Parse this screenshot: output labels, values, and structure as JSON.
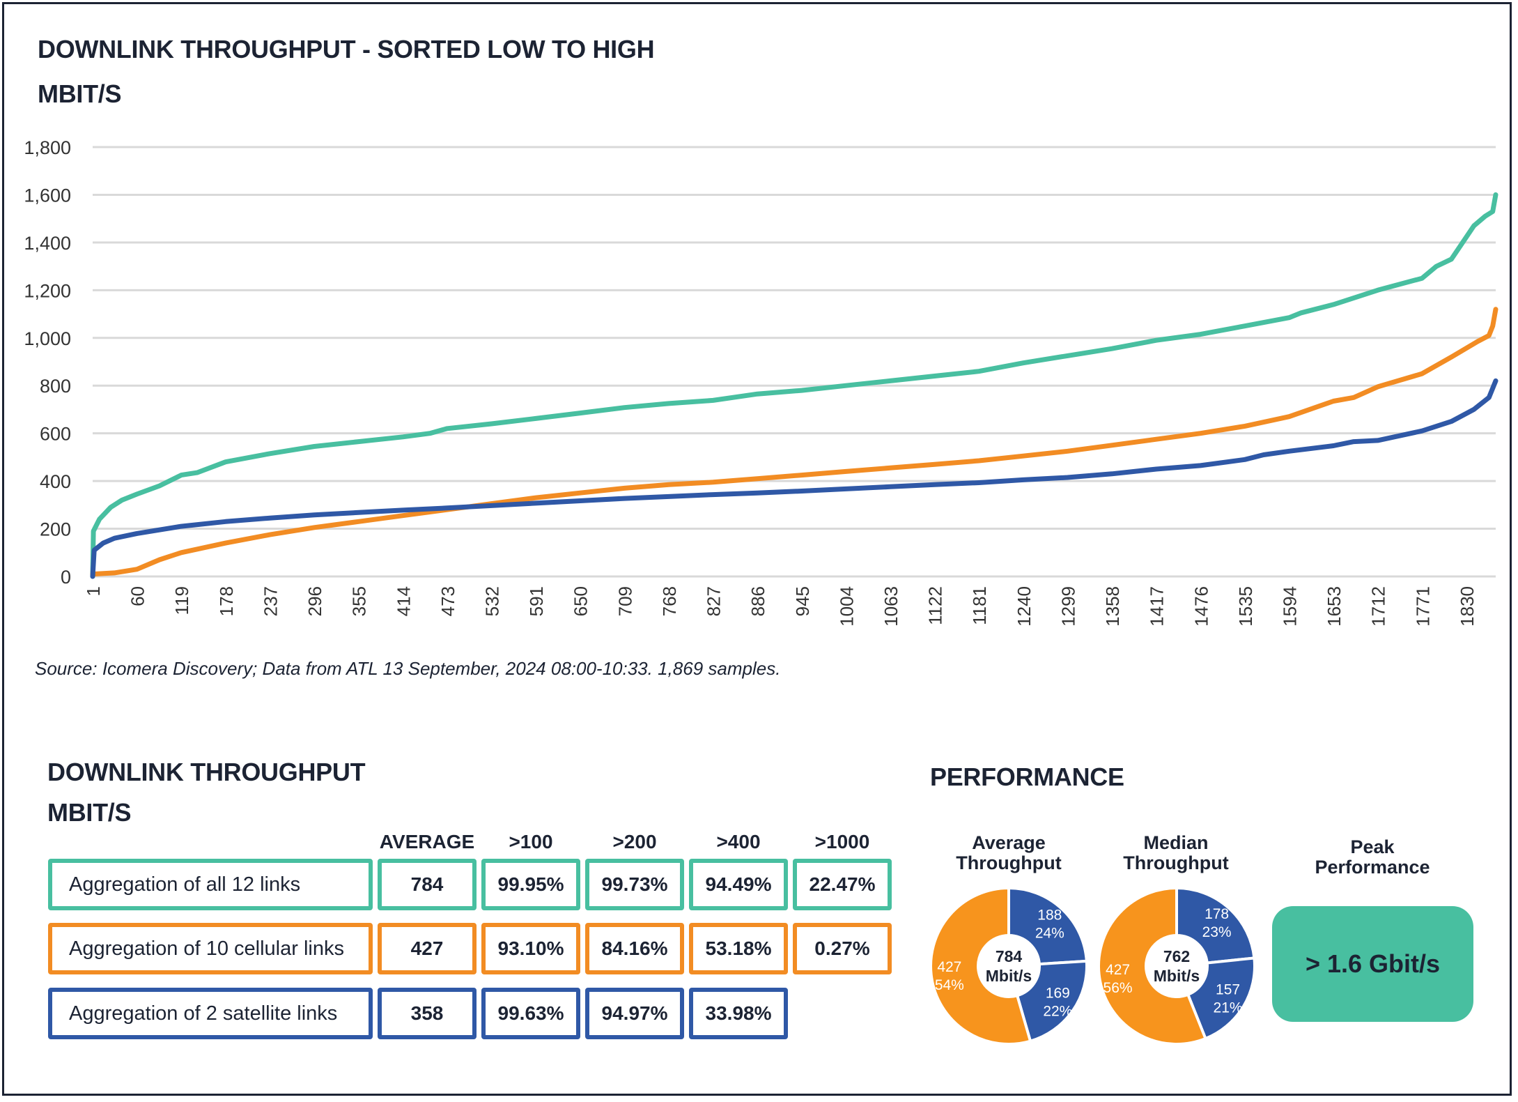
{
  "chart_title": "DOWNLINK THROUGHPUT - SORTED LOW TO HIGH",
  "chart_unit": "MBIT/S",
  "source": "Source: Icomera Discovery; Data from ATL 13 September, 2024 08:00-10:33. 1,869 samples.",
  "chart_data": {
    "type": "line",
    "title": "DOWNLINK THROUGHPUT - SORTED LOW TO HIGH",
    "ylabel": "MBIT/S",
    "xlabel": "",
    "ylim": [
      0,
      1800
    ],
    "xlim": [
      1,
      1869
    ],
    "yticks": [
      0,
      200,
      400,
      600,
      800,
      1000,
      1200,
      1400,
      1600,
      1800
    ],
    "ytick_labels": [
      "0",
      "200",
      "400",
      "600",
      "800",
      "1,000",
      "1,200",
      "1,400",
      "1,600",
      "1,800"
    ],
    "xticks": [
      "1",
      "60",
      "119",
      "178",
      "237",
      "296",
      "355",
      "414",
      "473",
      "532",
      "591",
      "650",
      "709",
      "768",
      "827",
      "886",
      "945",
      "1004",
      "1063",
      "1122",
      "1181",
      "1240",
      "1299",
      "1358",
      "1417",
      "1476",
      "1535",
      "1594",
      "1653",
      "1712",
      "1771",
      "1830"
    ],
    "grid": true,
    "series": [
      {
        "name": "Aggregation of all 12 links",
        "color": "#48bfa0",
        "points": [
          [
            1,
            0
          ],
          [
            2,
            190
          ],
          [
            10,
            240
          ],
          [
            25,
            290
          ],
          [
            40,
            320
          ],
          [
            60,
            345
          ],
          [
            90,
            380
          ],
          [
            119,
            425
          ],
          [
            140,
            435
          ],
          [
            178,
            480
          ],
          [
            237,
            515
          ],
          [
            296,
            545
          ],
          [
            355,
            565
          ],
          [
            414,
            585
          ],
          [
            450,
            600
          ],
          [
            473,
            620
          ],
          [
            532,
            640
          ],
          [
            591,
            662
          ],
          [
            650,
            685
          ],
          [
            709,
            708
          ],
          [
            768,
            725
          ],
          [
            827,
            738
          ],
          [
            886,
            765
          ],
          [
            945,
            780
          ],
          [
            1004,
            800
          ],
          [
            1063,
            820
          ],
          [
            1122,
            840
          ],
          [
            1181,
            860
          ],
          [
            1240,
            895
          ],
          [
            1299,
            925
          ],
          [
            1358,
            955
          ],
          [
            1417,
            990
          ],
          [
            1476,
            1015
          ],
          [
            1535,
            1050
          ],
          [
            1594,
            1085
          ],
          [
            1610,
            1105
          ],
          [
            1653,
            1140
          ],
          [
            1712,
            1200
          ],
          [
            1771,
            1250
          ],
          [
            1790,
            1300
          ],
          [
            1810,
            1330
          ],
          [
            1840,
            1470
          ],
          [
            1855,
            1510
          ],
          [
            1865,
            1530
          ],
          [
            1869,
            1600
          ]
        ]
      },
      {
        "name": "Aggregation of 10 cellular links",
        "color": "#f28c23",
        "points": [
          [
            1,
            10
          ],
          [
            30,
            15
          ],
          [
            60,
            30
          ],
          [
            90,
            70
          ],
          [
            119,
            100
          ],
          [
            178,
            140
          ],
          [
            237,
            175
          ],
          [
            296,
            205
          ],
          [
            355,
            230
          ],
          [
            414,
            255
          ],
          [
            473,
            280
          ],
          [
            532,
            305
          ],
          [
            591,
            330
          ],
          [
            650,
            350
          ],
          [
            709,
            370
          ],
          [
            768,
            385
          ],
          [
            827,
            395
          ],
          [
            886,
            410
          ],
          [
            945,
            425
          ],
          [
            1004,
            440
          ],
          [
            1063,
            455
          ],
          [
            1122,
            470
          ],
          [
            1181,
            485
          ],
          [
            1240,
            505
          ],
          [
            1299,
            525
          ],
          [
            1358,
            550
          ],
          [
            1417,
            575
          ],
          [
            1476,
            600
          ],
          [
            1535,
            630
          ],
          [
            1594,
            670
          ],
          [
            1653,
            735
          ],
          [
            1680,
            750
          ],
          [
            1712,
            795
          ],
          [
            1771,
            850
          ],
          [
            1810,
            920
          ],
          [
            1845,
            985
          ],
          [
            1860,
            1010
          ],
          [
            1865,
            1050
          ],
          [
            1869,
            1120
          ]
        ]
      },
      {
        "name": "Aggregation of 2 satellite links",
        "color": "#2f58a6",
        "points": [
          [
            1,
            0
          ],
          [
            3,
            110
          ],
          [
            15,
            140
          ],
          [
            30,
            160
          ],
          [
            60,
            180
          ],
          [
            119,
            210
          ],
          [
            178,
            230
          ],
          [
            237,
            245
          ],
          [
            296,
            258
          ],
          [
            355,
            268
          ],
          [
            414,
            278
          ],
          [
            473,
            287
          ],
          [
            532,
            297
          ],
          [
            591,
            307
          ],
          [
            650,
            317
          ],
          [
            709,
            327
          ],
          [
            768,
            335
          ],
          [
            827,
            343
          ],
          [
            886,
            350
          ],
          [
            945,
            358
          ],
          [
            1004,
            367
          ],
          [
            1063,
            376
          ],
          [
            1122,
            385
          ],
          [
            1181,
            393
          ],
          [
            1240,
            405
          ],
          [
            1299,
            415
          ],
          [
            1358,
            430
          ],
          [
            1417,
            450
          ],
          [
            1476,
            465
          ],
          [
            1535,
            490
          ],
          [
            1560,
            510
          ],
          [
            1594,
            525
          ],
          [
            1653,
            548
          ],
          [
            1680,
            565
          ],
          [
            1712,
            570
          ],
          [
            1771,
            610
          ],
          [
            1810,
            650
          ],
          [
            1840,
            700
          ],
          [
            1860,
            750
          ],
          [
            1869,
            820
          ]
        ]
      }
    ]
  },
  "table": {
    "title": "DOWNLINK THROUGHPUT",
    "unit": "MBIT/S",
    "columns": [
      "AVERAGE",
      ">100",
      ">200",
      ">400",
      ">1000"
    ],
    "rows": [
      {
        "label": "Aggregation of all 12 links",
        "values": [
          "784",
          "99.95%",
          "99.73%",
          "94.49%",
          "22.47%"
        ]
      },
      {
        "label": "Aggregation of 10 cellular links",
        "values": [
          "427",
          "93.10%",
          "84.16%",
          "53.18%",
          "0.27%"
        ]
      },
      {
        "label": "Aggregation of 2 satellite links",
        "values": [
          "358",
          "99.63%",
          "94.97%",
          "33.98%"
        ]
      }
    ]
  },
  "performance": {
    "title": "PERFORMANCE",
    "donuts": [
      {
        "title_line1": "Average",
        "title_line2": "Throughput",
        "center_line1": "784",
        "center_line2": "Mbit/s",
        "slices": [
          {
            "value": 188,
            "label_value": "188",
            "label_pct": "24%",
            "color": "#2f58a6"
          },
          {
            "value": 169,
            "label_value": "169",
            "label_pct": "22%",
            "color": "#2f58a6"
          },
          {
            "value": 427,
            "label_value": "427",
            "label_pct": "54%",
            "color": "#f7941d"
          }
        ]
      },
      {
        "title_line1": "Median",
        "title_line2": "Throughput",
        "center_line1": "762",
        "center_line2": "Mbit/s",
        "slices": [
          {
            "value": 178,
            "label_value": "178",
            "label_pct": "23%",
            "color": "#2f58a6"
          },
          {
            "value": 157,
            "label_value": "157",
            "label_pct": "21%",
            "color": "#2f58a6"
          },
          {
            "value": 427,
            "label_value": "427",
            "label_pct": "56%",
            "color": "#f7941d"
          }
        ]
      }
    ],
    "peak_title_line1": "Peak",
    "peak_title_line2": "Performance",
    "peak_value": "> 1.6 Gbit/s"
  }
}
